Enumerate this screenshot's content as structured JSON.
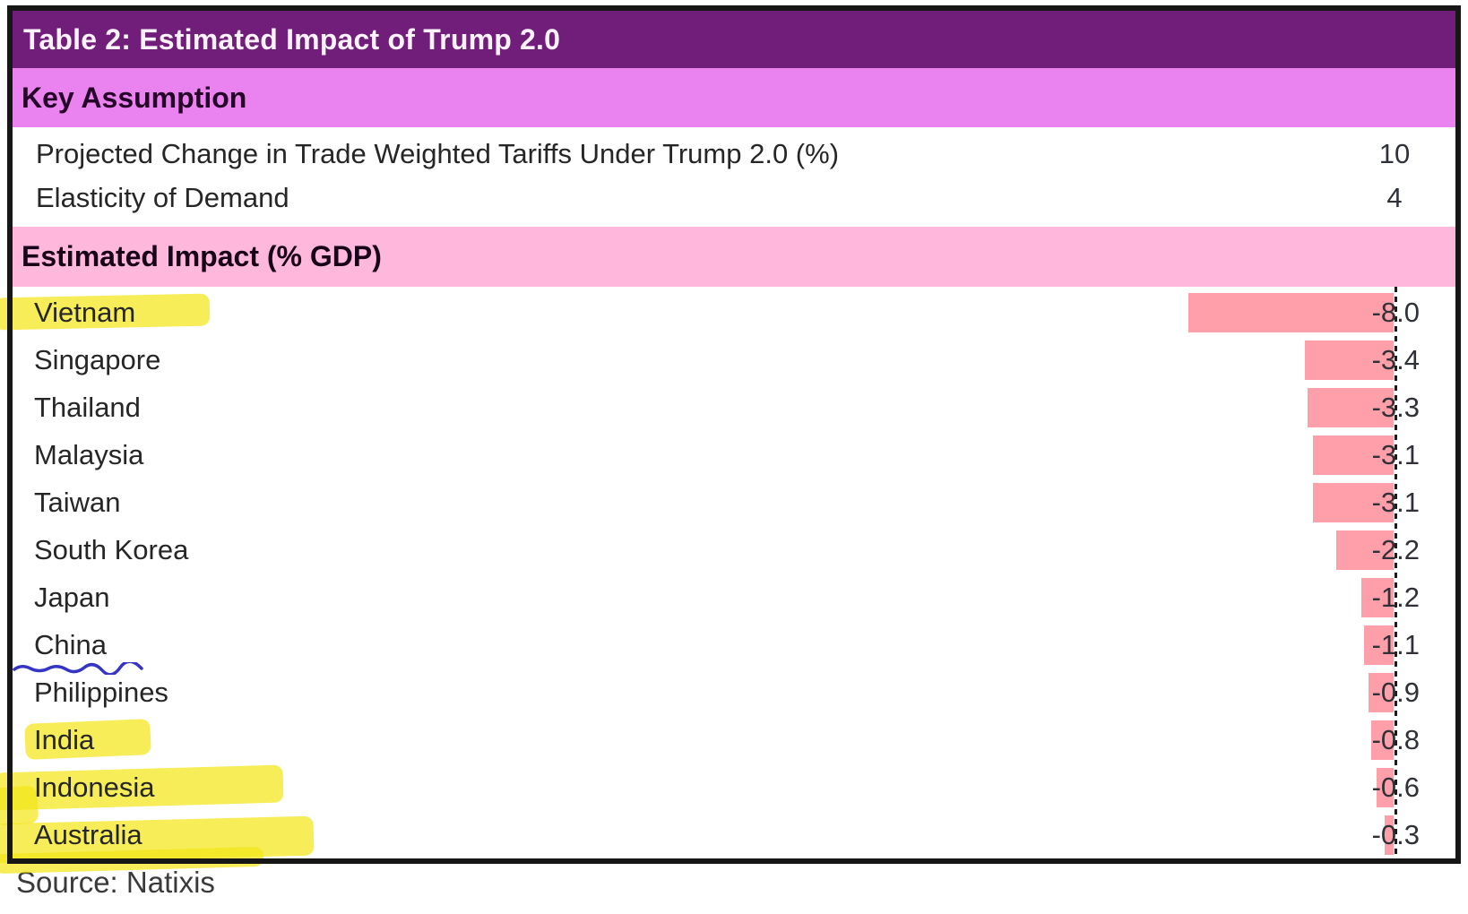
{
  "table": {
    "title": "Table 2: Estimated Impact of Trump 2.0",
    "key_assumption": {
      "header": "Key Assumption",
      "rows": [
        {
          "label": "Projected Change in Trade Weighted Tariffs Under Trump 2.0 (%)",
          "value": "10"
        },
        {
          "label": "Elasticity of Demand",
          "value": "4"
        }
      ]
    },
    "estimated_impact_header": "Estimated Impact (% GDP)",
    "source": "Source: Natixis"
  },
  "chart_data": {
    "type": "bar",
    "orientation": "horizontal",
    "title": "Estimated Impact (% GDP)",
    "categories": [
      "Vietnam",
      "Singapore",
      "Thailand",
      "Malaysia",
      "Taiwan",
      "South Korea",
      "Japan",
      "China",
      "Philippines",
      "India",
      "Indonesia",
      "Australia"
    ],
    "values": [
      -8.0,
      -3.4,
      -3.3,
      -3.1,
      -3.1,
      -2.2,
      -1.2,
      -1.1,
      -0.9,
      -0.8,
      -0.6,
      -0.3
    ],
    "value_labels": [
      "-8.0",
      "-3.4",
      "-3.3",
      "-3.1",
      "-3.1",
      "-2.2",
      "-1.2",
      "-1.1",
      "-0.9",
      "-0.8",
      "-0.6",
      "-0.3"
    ],
    "xlim": [
      -10,
      0
    ],
    "baseline": 0,
    "grid": false,
    "legend": false,
    "baseline_style": "dashed",
    "bar_color": "#ff9fa9",
    "annotations": {
      "highlighted": [
        "Vietnam",
        "India",
        "Indonesia",
        "Australia"
      ],
      "underlined": [
        "China"
      ],
      "highlighter_color": "rgba(243,230,25,0.72)",
      "pen_color": "#3534c4"
    }
  },
  "colors": {
    "title_band": "#701e7a",
    "key_band": "#ea83ef",
    "impact_band": "#ffb8db",
    "bar": "#ff9fa9",
    "border": "#161616"
  }
}
